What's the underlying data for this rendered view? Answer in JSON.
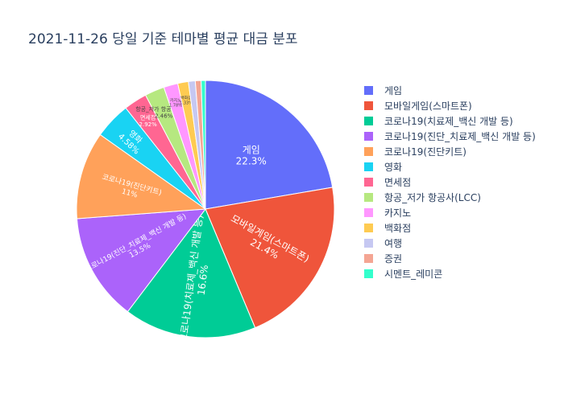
{
  "chart_data": {
    "type": "pie",
    "title": "2021-11-26 당일 기준 테마별 평균 대금 분포",
    "legend_position": "right",
    "slices": [
      {
        "label": "게임",
        "percent": 22.3,
        "text": "22.3%",
        "color": "#636efa"
      },
      {
        "label": "모바일게임(스마트폰)",
        "percent": 21.4,
        "text": "21.4%",
        "color": "#ef553b"
      },
      {
        "label": "코로나19(치료제_백신 개발 등)",
        "percent": 16.6,
        "text": "16.6%",
        "color": "#00cc96"
      },
      {
        "label": "코로나19(진단_치료제_백신 개발 등)",
        "percent": 13.5,
        "text": "13.5%",
        "color": "#ab63fa"
      },
      {
        "label": "코로나19(진단키트)",
        "percent": 11.0,
        "text": "11%",
        "color": "#ffa15a"
      },
      {
        "label": "영화",
        "percent": 4.58,
        "text": "4.58%",
        "color": "#19d3f3"
      },
      {
        "label": "면세점",
        "percent": 2.92,
        "text": "2.92%",
        "color": "#ff6692"
      },
      {
        "label": "항공_저가 항공사(LCC)",
        "percent": 2.46,
        "text": "2.46%",
        "color": "#b6e880"
      },
      {
        "label": "카지노",
        "percent": 1.78,
        "text": "1.78%",
        "color": "#ff97ff"
      },
      {
        "label": "백화점",
        "percent": 1.33,
        "text": "1.33%",
        "color": "#fecb52"
      },
      {
        "label": "여행",
        "percent": 0.86,
        "text": "",
        "color": "#c6c8f2"
      },
      {
        "label": "증권",
        "percent": 0.72,
        "text": "",
        "color": "#f4a593"
      },
      {
        "label": "시멘트_레미콘",
        "percent": 0.54,
        "text": "",
        "color": "#33ffcc"
      }
    ]
  }
}
